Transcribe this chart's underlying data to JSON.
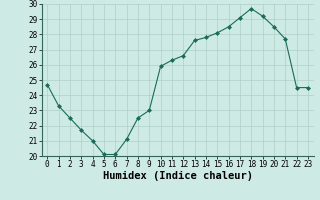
{
  "x": [
    0,
    1,
    2,
    3,
    4,
    5,
    6,
    7,
    8,
    9,
    10,
    11,
    12,
    13,
    14,
    15,
    16,
    17,
    18,
    19,
    20,
    21,
    22,
    23
  ],
  "y": [
    24.7,
    23.3,
    22.5,
    21.7,
    21.0,
    20.1,
    20.1,
    21.1,
    22.5,
    23.0,
    25.9,
    26.3,
    26.6,
    27.6,
    27.8,
    28.1,
    28.5,
    29.1,
    29.7,
    29.2,
    28.5,
    27.7,
    24.5,
    24.5
  ],
  "line_color": "#1a6b5a",
  "marker": "D",
  "marker_size": 2.0,
  "xlabel": "Humidex (Indice chaleur)",
  "ylim": [
    20,
    30
  ],
  "xlim": [
    -0.5,
    23.5
  ],
  "yticks": [
    20,
    21,
    22,
    23,
    24,
    25,
    26,
    27,
    28,
    29,
    30
  ],
  "xticks": [
    0,
    1,
    2,
    3,
    4,
    5,
    6,
    7,
    8,
    9,
    10,
    11,
    12,
    13,
    14,
    15,
    16,
    17,
    18,
    19,
    20,
    21,
    22,
    23
  ],
  "bg_color": "#ceeae4",
  "grid_color": "#aecfc8",
  "tick_label_fontsize": 5.5,
  "xlabel_fontsize": 7.5,
  "linewidth": 0.8
}
